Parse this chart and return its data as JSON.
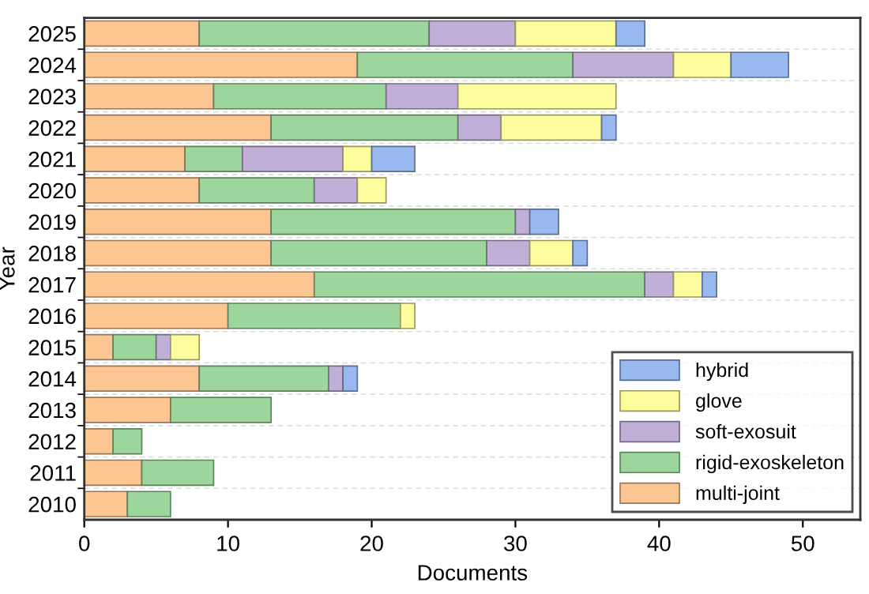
{
  "chart_data": {
    "type": "bar",
    "orientation": "horizontal",
    "stacked": true,
    "xlabel": "Documents",
    "ylabel": "Year",
    "categories": [
      "2025",
      "2024",
      "2023",
      "2022",
      "2021",
      "2020",
      "2019",
      "2018",
      "2017",
      "2016",
      "2015",
      "2014",
      "2013",
      "2012",
      "2011",
      "2010"
    ],
    "series": [
      {
        "name": "multi-joint",
        "color": "#fbc692",
        "values": [
          8,
          19,
          9,
          13,
          7,
          8,
          13,
          13,
          16,
          10,
          2,
          8,
          6,
          2,
          4,
          3
        ]
      },
      {
        "name": "rigid-exoskeleton",
        "color": "#9dd69d",
        "values": [
          16,
          15,
          12,
          13,
          4,
          8,
          17,
          15,
          23,
          12,
          3,
          9,
          7,
          2,
          5,
          3
        ]
      },
      {
        "name": "soft-exosuit",
        "color": "#c0b0d8",
        "values": [
          6,
          7,
          5,
          3,
          7,
          3,
          1,
          3,
          2,
          null,
          1,
          1,
          null,
          null,
          null,
          null
        ]
      },
      {
        "name": "glove",
        "color": "#fdfd9d",
        "values": [
          7,
          4,
          11,
          7,
          2,
          2,
          null,
          3,
          2,
          1,
          2,
          null,
          null,
          null,
          null,
          null
        ]
      },
      {
        "name": "hybrid",
        "color": "#98b8f0",
        "values": [
          2,
          4,
          null,
          1,
          3,
          null,
          2,
          1,
          1,
          null,
          null,
          1,
          null,
          null,
          null,
          null
        ]
      }
    ],
    "xlim": [
      0,
      54
    ],
    "xticks": [
      0,
      10,
      20,
      30,
      40,
      50
    ],
    "grid": "y",
    "legend": "bottom right"
  }
}
